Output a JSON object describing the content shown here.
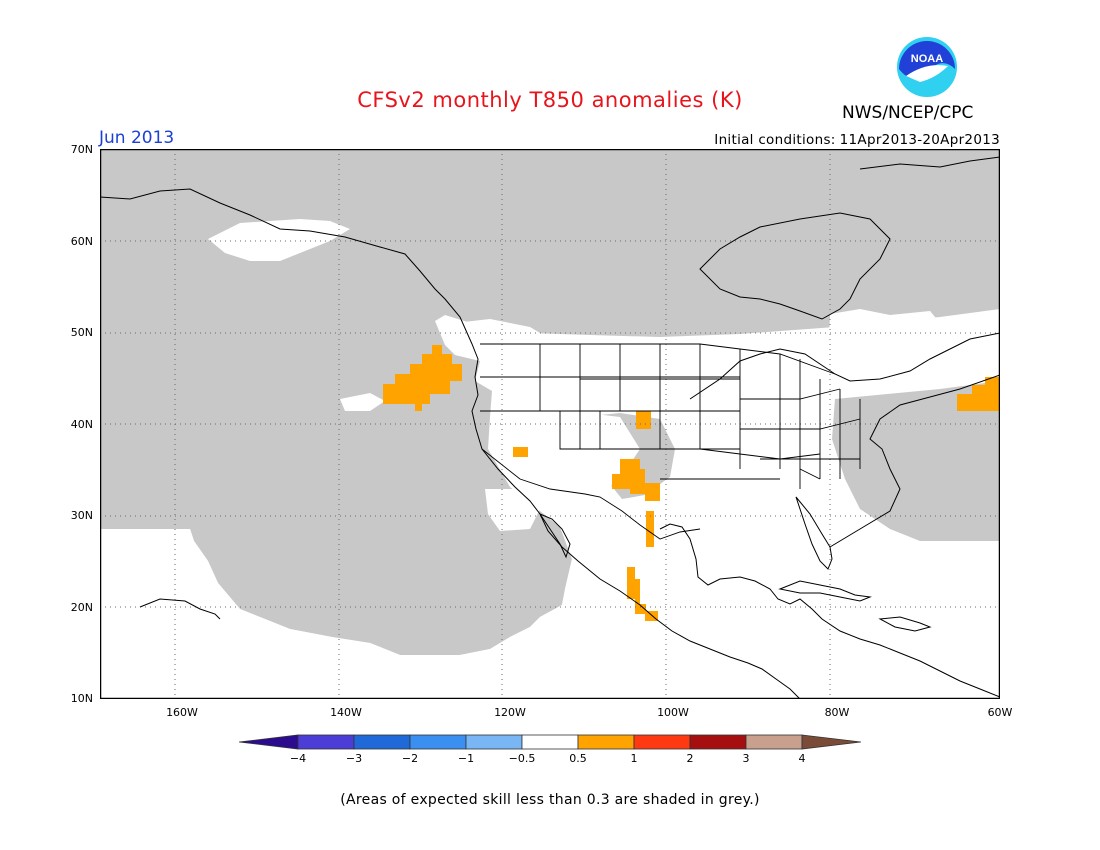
{
  "header": {
    "title": "CFSv2 monthly T850 anomalies (K)",
    "agency": "NWS/NCEP/CPC",
    "logo_text": "NOAA",
    "month": "Jun 2013",
    "initial_conditions_label": "Initial conditions:",
    "initial_conditions_value": "11Apr2013-20Apr2013"
  },
  "map": {
    "projection": "lat-lon",
    "lon_range": [
      "170W",
      "60W"
    ],
    "lat_range": [
      "10N",
      "70N"
    ],
    "lat_labels": [
      "70N",
      "60N",
      "50N",
      "40N",
      "30N",
      "20N",
      "10N"
    ],
    "lon_labels": [
      "160W",
      "140W",
      "120W",
      "100W",
      "80W",
      "60W"
    ],
    "skill_mask_color": "#c8c8c8",
    "positive_anomaly_color": "#ffa300",
    "anomaly_regions": [
      "Northeast Pacific off Oregon/Washington",
      "Southern Nevada",
      "Colorado",
      "New Mexico",
      "Northern Mexico",
      "Western Mexico",
      "North Atlantic off Nova Scotia"
    ]
  },
  "colorbar": {
    "tick_labels": [
      "−4",
      "−3",
      "−2",
      "−1",
      "−0.5",
      "0.5",
      "1",
      "2",
      "3",
      "4"
    ],
    "colors": [
      "#2c0c8e",
      "#4b3dd6",
      "#1f6ad8",
      "#3b8ff0",
      "#78b6f5",
      "#ffffff",
      "#ffa300",
      "#ff3a12",
      "#a50f0f",
      "#c9a08d",
      "#7a4b36"
    ]
  },
  "footnote": "(Areas of expected skill less than 0.3 are shaded in grey.)"
}
